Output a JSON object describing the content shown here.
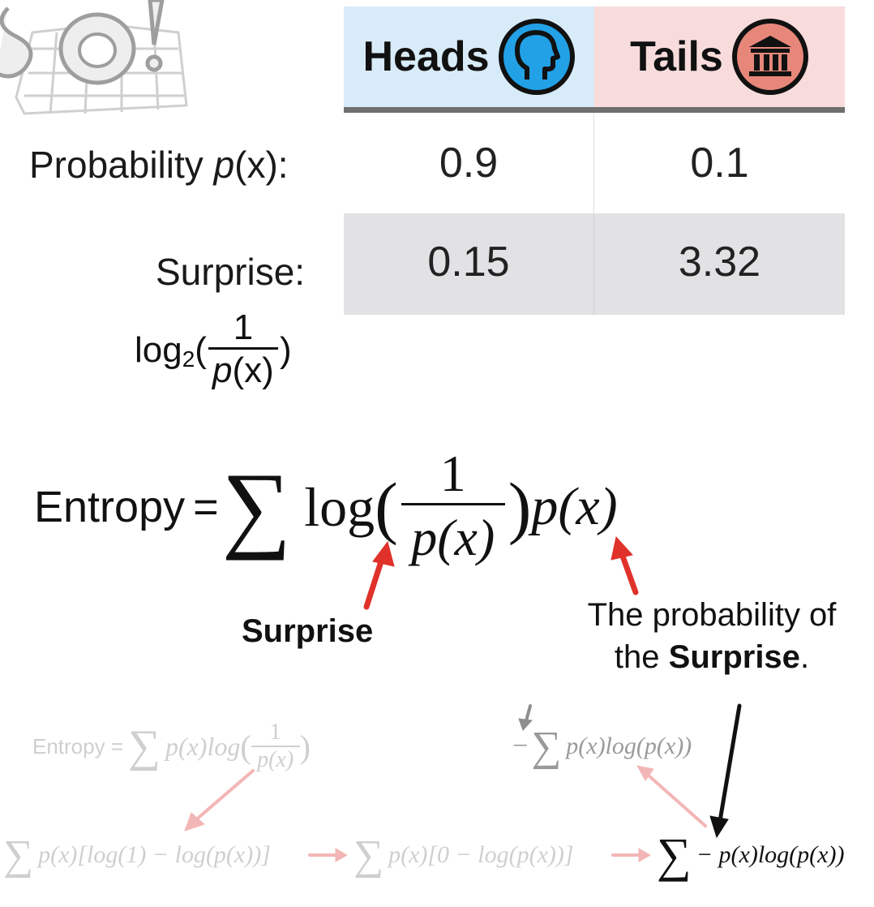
{
  "table": {
    "headers": [
      {
        "label": "Heads",
        "icon": "head-profile-icon",
        "bg": "#d8ebf8",
        "icon_color": "#23a1e6"
      },
      {
        "label": "Tails",
        "icon": "bank-building-icon",
        "bg": "#f8dcdc",
        "icon_color": "#e7877a"
      }
    ],
    "rows": [
      {
        "label": "Probability",
        "label_math": "p",
        "label_tail": "(x):",
        "values": [
          "0.9",
          "0.1"
        ]
      },
      {
        "label": "Surprise:",
        "values": [
          "0.15",
          "3.32"
        ]
      }
    ]
  },
  "surprise_formula": {
    "log": "log",
    "base": "2",
    "open": "(",
    "numerator": "1",
    "denominator_p": "p",
    "denominator_x": "(x)",
    "close": ")"
  },
  "entropy": {
    "label": "Entropy",
    "equals": "=",
    "sigma": "∑",
    "log": "log",
    "open": "(",
    "numerator": "1",
    "denominator": "p(x)",
    "close": ")",
    "tail": "p(x)"
  },
  "annotations": {
    "surprise": "Surprise",
    "probability_line1": "The probability of",
    "probability_line2_pre": "the ",
    "probability_line2_bold": "Surprise",
    "probability_line2_post": ".",
    "arrow_color": "#e0322b"
  },
  "derivation": {
    "step1_label": "Entropy =",
    "step1_sigma": "∑",
    "step1_body": "p(x)log",
    "step1_open": "(",
    "step1_num": "1",
    "step1_den": "p(x)",
    "step1_close": ")",
    "step2_minus": "−",
    "step2_sigma": "∑",
    "step2_body": "p(x)log(p(x))",
    "line_a_sigma": "∑",
    "line_a_body": "p(x)[log(1) − log(p(x))]",
    "line_b_sigma": "∑",
    "line_b_body": "p(x)[0 − log(p(x))]",
    "line_c_sigma": "∑",
    "line_c_body": "− p(x)log(p(x))"
  }
}
